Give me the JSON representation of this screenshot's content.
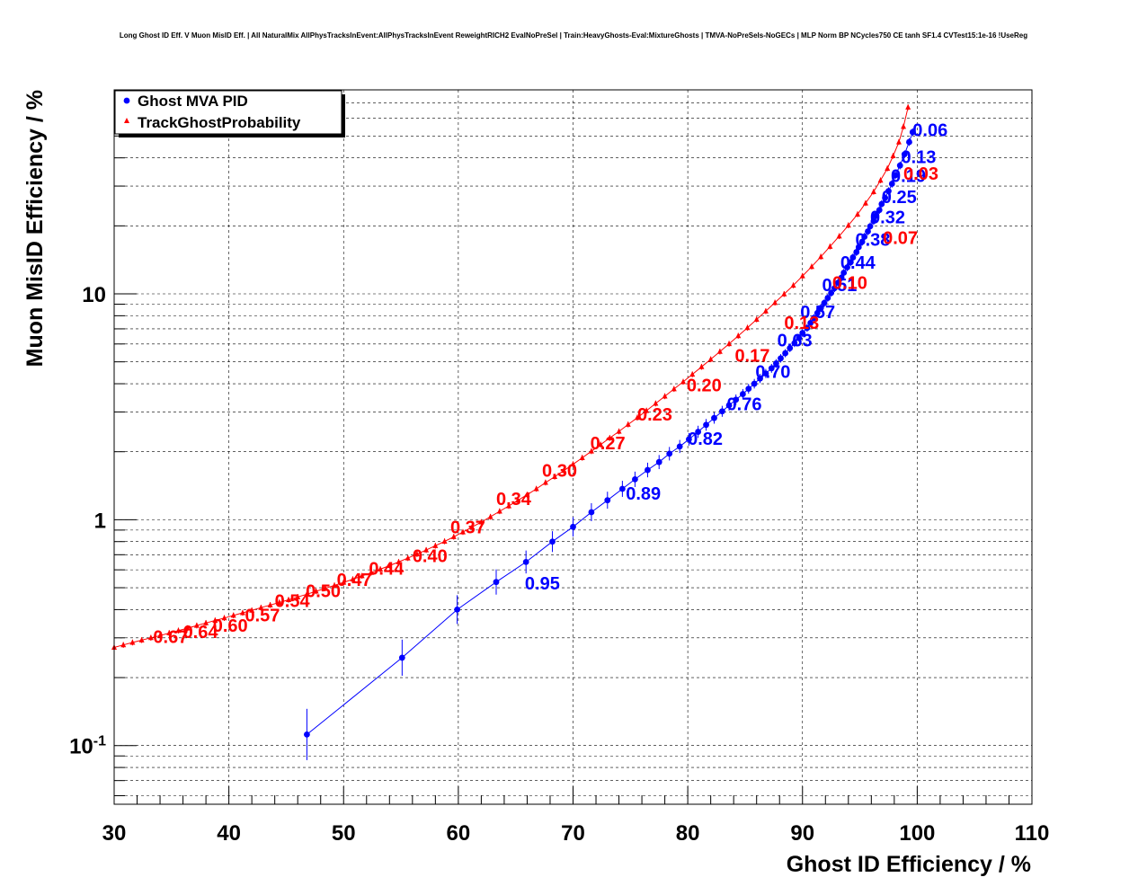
{
  "chart_data": {
    "type": "scatter",
    "title": "Long Ghost ID Eff. V Muon MisID Eff. | All NaturalMix AllPhysTracksInEvent:AllPhysTracksInEvent ReweightRICH2 EvalNoPreSel | Train:HeavyGhosts-Eval:MixtureGhosts | TMVA-NoPreSels-NoGECs | MLP Norm BP NCycles750 CE tanh SF1.4 CVTest15:1e-16 !UseReg",
    "xlabel": "Ghost ID Efficiency / %",
    "ylabel": "Muon MisID Efficiency / %",
    "xlim": [
      30,
      110
    ],
    "ylim": [
      0.055,
      80
    ],
    "yscale": "log",
    "xticks": [
      {
        "value": 30,
        "label": "30"
      },
      {
        "value": 40,
        "label": "40"
      },
      {
        "value": 50,
        "label": "50"
      },
      {
        "value": 60,
        "label": "60"
      },
      {
        "value": 70,
        "label": "70"
      },
      {
        "value": 80,
        "label": "80"
      },
      {
        "value": 90,
        "label": "90"
      },
      {
        "value": 100,
        "label": "100"
      },
      {
        "value": 110,
        "label": "110"
      }
    ],
    "yticks": [
      {
        "value": 0.1,
        "base": "10",
        "exp": "-1"
      },
      {
        "value": 1,
        "base": "1",
        "exp": ""
      },
      {
        "value": 10,
        "base": "10",
        "exp": ""
      }
    ],
    "grid": true,
    "legend_position": "top-left",
    "series": [
      {
        "name": "Ghost MVA PID",
        "color": "#0000ff",
        "marker": "circle",
        "x": [
          46.8,
          55.1,
          59.9,
          63.3,
          65.9,
          68.2,
          70.0,
          71.6,
          73.0,
          74.3,
          75.4,
          76.5,
          77.5,
          78.4,
          79.3,
          80.1,
          80.9,
          81.6,
          82.3,
          83.0,
          83.6,
          84.2,
          84.8,
          85.3,
          85.8,
          86.3,
          86.8,
          87.3,
          87.7,
          88.1,
          88.5,
          88.9,
          89.3,
          89.7,
          90.0,
          90.4,
          90.7,
          91.0,
          91.3,
          91.6,
          91.9,
          92.2,
          92.5,
          92.8,
          93.1,
          93.4,
          93.6,
          93.9,
          94.2,
          94.4,
          94.7,
          94.9,
          95.2,
          95.4,
          95.7,
          95.9,
          96.2,
          96.4,
          96.7,
          96.9,
          97.2,
          97.5,
          97.8,
          98.1,
          98.5,
          98.9,
          99.3,
          99.6
        ],
        "y": [
          0.112,
          0.245,
          0.4,
          0.53,
          0.65,
          0.8,
          0.93,
          1.08,
          1.22,
          1.37,
          1.51,
          1.66,
          1.8,
          1.96,
          2.11,
          2.27,
          2.45,
          2.63,
          2.82,
          3.02,
          3.21,
          3.4,
          3.6,
          3.8,
          4.0,
          4.22,
          4.44,
          4.68,
          4.92,
          5.18,
          5.46,
          5.75,
          6.05,
          6.37,
          6.71,
          7.06,
          7.43,
          7.82,
          8.23,
          8.66,
          9.11,
          9.59,
          10.1,
          10.6,
          11.2,
          11.8,
          12.4,
          13.1,
          13.8,
          14.5,
          15.3,
          16.1,
          17.0,
          17.9,
          18.9,
          19.9,
          21.0,
          22.2,
          23.5,
          25.0,
          26.6,
          28.5,
          30.7,
          33.5,
          37.0,
          41.5,
          47.0,
          52.0
        ],
        "labels": [
          {
            "x": 65.8,
            "y": 0.49,
            "text": "0.95"
          },
          {
            "x": 74.6,
            "y": 1.23,
            "text": "0.89"
          },
          {
            "x": 80.0,
            "y": 2.15,
            "text": "0.82"
          },
          {
            "x": 83.4,
            "y": 3.05,
            "text": "0.76"
          },
          {
            "x": 85.9,
            "y": 4.25,
            "text": "0.70"
          },
          {
            "x": 87.8,
            "y": 5.85,
            "text": "0.63"
          },
          {
            "x": 89.8,
            "y": 7.8,
            "text": "0.57"
          },
          {
            "x": 91.7,
            "y": 10.3,
            "text": "0.51"
          },
          {
            "x": 93.3,
            "y": 12.9,
            "text": "0.44"
          },
          {
            "x": 94.6,
            "y": 16.3,
            "text": "0.38"
          },
          {
            "x": 95.9,
            "y": 20.5,
            "text": "0.32"
          },
          {
            "x": 96.9,
            "y": 25.2,
            "text": "0.25"
          },
          {
            "x": 97.7,
            "y": 31.3,
            "text": "0.19"
          },
          {
            "x": 98.6,
            "y": 38.0,
            "text": "0.13"
          },
          {
            "x": 99.6,
            "y": 50.0,
            "text": "0.06"
          }
        ]
      },
      {
        "name": "TrackGhostProbability",
        "color": "#ff0000",
        "marker": "triangle",
        "x": [
          30.0,
          30.8,
          31.6,
          32.4,
          33.2,
          34.0,
          34.8,
          35.6,
          36.4,
          37.2,
          38.0,
          38.8,
          39.6,
          40.4,
          41.2,
          42.0,
          42.8,
          43.6,
          44.4,
          45.2,
          46.0,
          46.8,
          47.6,
          48.4,
          49.2,
          50.0,
          50.8,
          51.6,
          52.4,
          53.2,
          54.0,
          54.8,
          55.6,
          56.4,
          57.2,
          58.0,
          58.8,
          59.6,
          60.4,
          61.2,
          62.0,
          62.8,
          63.6,
          64.4,
          65.2,
          66.0,
          66.8,
          67.6,
          68.4,
          69.2,
          70.0,
          70.8,
          71.6,
          72.4,
          73.2,
          74.0,
          74.8,
          75.6,
          76.4,
          77.2,
          78.0,
          78.8,
          79.6,
          80.4,
          81.2,
          82.0,
          82.8,
          83.6,
          84.4,
          85.2,
          86.0,
          86.8,
          87.6,
          88.4,
          89.2,
          90.0,
          90.8,
          91.6,
          92.4,
          93.2,
          94.0,
          94.8,
          95.5,
          96.2,
          96.8,
          97.4,
          97.9,
          98.4,
          98.8,
          99.2
        ],
        "y": [
          0.272,
          0.279,
          0.286,
          0.293,
          0.3,
          0.307,
          0.315,
          0.323,
          0.331,
          0.34,
          0.349,
          0.358,
          0.367,
          0.377,
          0.387,
          0.397,
          0.408,
          0.419,
          0.43,
          0.442,
          0.455,
          0.468,
          0.482,
          0.497,
          0.512,
          0.528,
          0.545,
          0.564,
          0.583,
          0.604,
          0.626,
          0.65,
          0.676,
          0.704,
          0.734,
          0.767,
          0.802,
          0.84,
          0.882,
          0.927,
          0.976,
          1.03,
          1.09,
          1.15,
          1.22,
          1.29,
          1.37,
          1.46,
          1.55,
          1.65,
          1.76,
          1.88,
          2.01,
          2.15,
          2.3,
          2.46,
          2.64,
          2.83,
          3.04,
          3.27,
          3.52,
          3.79,
          4.08,
          4.4,
          4.75,
          5.13,
          5.55,
          6.01,
          6.52,
          7.08,
          7.7,
          8.38,
          9.14,
          9.98,
          10.9,
          12.0,
          13.2,
          14.6,
          16.2,
          18.0,
          20.1,
          22.5,
          25.2,
          28.3,
          31.8,
          35.9,
          40.8,
          47.0,
          55.0,
          67.0
        ],
        "labels": [
          {
            "x": 33.4,
            "y": 0.285,
            "text": "0.67"
          },
          {
            "x": 36.0,
            "y": 0.3,
            "text": "0.64"
          },
          {
            "x": 38.6,
            "y": 0.32,
            "text": "0.60"
          },
          {
            "x": 41.4,
            "y": 0.355,
            "text": "0.57"
          },
          {
            "x": 44.0,
            "y": 0.41,
            "text": "0.54"
          },
          {
            "x": 46.7,
            "y": 0.455,
            "text": "0.50"
          },
          {
            "x": 49.4,
            "y": 0.51,
            "text": "0.47"
          },
          {
            "x": 52.2,
            "y": 0.57,
            "text": "0.44"
          },
          {
            "x": 56.0,
            "y": 0.65,
            "text": "0.40"
          },
          {
            "x": 59.3,
            "y": 0.87,
            "text": "0.37"
          },
          {
            "x": 63.3,
            "y": 1.16,
            "text": "0.34"
          },
          {
            "x": 67.3,
            "y": 1.55,
            "text": "0.30"
          },
          {
            "x": 71.5,
            "y": 2.05,
            "text": "0.27"
          },
          {
            "x": 75.6,
            "y": 2.75,
            "text": "0.23"
          },
          {
            "x": 79.9,
            "y": 3.7,
            "text": "0.20"
          },
          {
            "x": 84.1,
            "y": 5.0,
            "text": "0.17"
          },
          {
            "x": 88.4,
            "y": 7.0,
            "text": "0.13"
          },
          {
            "x": 92.6,
            "y": 10.5,
            "text": "0.10"
          },
          {
            "x": 97.0,
            "y": 16.6,
            "text": "0.07"
          },
          {
            "x": 98.8,
            "y": 32.0,
            "text": "0.03"
          }
        ]
      }
    ]
  }
}
